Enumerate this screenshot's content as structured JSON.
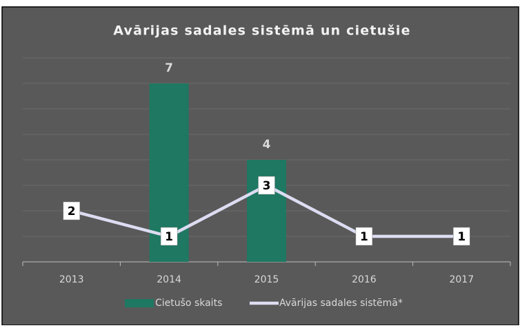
{
  "chart_data": {
    "type": "bar_line",
    "title": "Avārijas sadales sistēmā un cietušie",
    "categories": [
      "2013",
      "2014",
      "2015",
      "2016",
      "2017"
    ],
    "series": [
      {
        "name": "Cietušo skaits",
        "type": "bar",
        "color": "#1e7862",
        "values": [
          null,
          7,
          4,
          null,
          null
        ]
      },
      {
        "name": "Avārijas sadales sistēmā*",
        "type": "line",
        "color": "#dcdcf2",
        "values": [
          2,
          1,
          3,
          1,
          1
        ]
      }
    ],
    "ylim": [
      0,
      8
    ],
    "yticks": [
      0,
      1,
      2,
      3,
      4,
      5,
      6,
      7,
      8
    ],
    "grid": true,
    "legend": "bottom"
  }
}
